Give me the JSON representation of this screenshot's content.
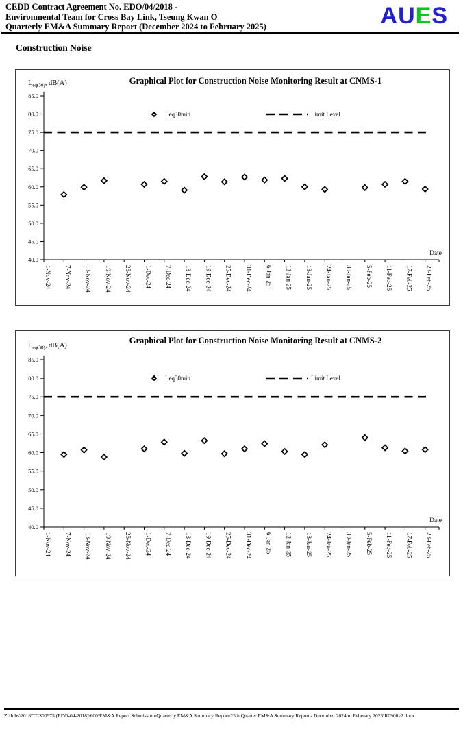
{
  "header": {
    "line1": "CEDD Contract Agreement No. EDO/04/2018 -",
    "line2": "Environmental Team for Cross Bay Link, Tseung Kwan O",
    "line3": "Quarterly EM&A Summary Report (December 2024 to February 2025)",
    "logo": {
      "letters": [
        {
          "ch": "A",
          "color": "#2222CC"
        },
        {
          "ch": "U",
          "color": "#2222CC"
        },
        {
          "ch": "E",
          "color": "#00C81E"
        },
        {
          "ch": "S",
          "color": "#2222CC"
        }
      ]
    }
  },
  "section_title": "Construction Noise",
  "chart_data": [
    {
      "type": "scatter",
      "title": "Graphical Plot for Construction Noise Monitoring Result at CNMS-1",
      "y_axis_label_prefix": "L",
      "y_axis_label_sub": "eq(30)",
      "y_axis_label_suffix": ", dB(A)",
      "x_axis_label": "Date",
      "ylim": [
        40.0,
        85.0
      ],
      "ytick_step": 5.0,
      "grid": false,
      "legend_position": "inside-top-center",
      "categories": [
        "1-Nov-24",
        "7-Nov-24",
        "13-Nov-24",
        "19-Nov-24",
        "25-Nov-24",
        "1-Dec-24",
        "7-Dec-24",
        "13-Dec-24",
        "19-Dec-24",
        "25-Dec-24",
        "31-Dec-24",
        "6-Jan-25",
        "12-Jan-25",
        "18-Jan-25",
        "24-Jan-25",
        "30-Jan-25",
        "5-Feb-25",
        "11-Feb-25",
        "17-Feb-25",
        "23-Feb-25"
      ],
      "series": [
        {
          "name": "Leq30min",
          "marker": "open-diamond",
          "values": [
            null,
            57.9,
            59.9,
            61.7,
            null,
            60.7,
            61.5,
            59.1,
            62.8,
            61.4,
            62.7,
            61.9,
            62.3,
            60.0,
            59.3,
            null,
            59.8,
            60.7,
            61.5,
            59.4
          ]
        },
        {
          "name": "Limit Level",
          "style": "dashed-line",
          "value": 75.0
        }
      ]
    },
    {
      "type": "scatter",
      "title": "Graphical Plot for Construction Noise Monitoring Result at CNMS-2",
      "y_axis_label_prefix": "L",
      "y_axis_label_sub": "eq(30)",
      "y_axis_label_suffix": ", dB(A)",
      "x_axis_label": "Date",
      "ylim": [
        40.0,
        85.0
      ],
      "ytick_step": 5.0,
      "grid": false,
      "legend_position": "inside-top-center",
      "categories": [
        "1-Nov-24",
        "7-Nov-24",
        "13-Nov-24",
        "19-Nov-24",
        "25-Nov-24",
        "1-Dec-24",
        "7-Dec-24",
        "13-Dec-24",
        "19-Dec-24",
        "25-Dec-24",
        "31-Dec-24",
        "6-Jan-25",
        "12-Jan-25",
        "18-Jan-25",
        "24-Jan-25",
        "30-Jan-25",
        "5-Feb-25",
        "11-Feb-25",
        "17-Feb-25",
        "23-Feb-25"
      ],
      "series": [
        {
          "name": "Leq30min",
          "marker": "open-diamond",
          "values": [
            null,
            59.5,
            60.7,
            58.8,
            null,
            61.0,
            62.8,
            59.8,
            63.2,
            59.7,
            61.0,
            62.4,
            60.3,
            59.5,
            62.1,
            null,
            64.0,
            61.3,
            60.4,
            60.8
          ]
        },
        {
          "name": "Limit Level",
          "style": "dashed-line",
          "value": 75.0
        }
      ]
    }
  ],
  "footer": {
    "path": "Z:\\Jobs\\2018\\TCS00975 (EDO-04-2018)\\600\\EM&A Report Submission\\Quarterly EM&A Summary Report\\25th Quarter EM&A Summary Report - December 2024 to February 2025\\R0900v2.docx"
  }
}
